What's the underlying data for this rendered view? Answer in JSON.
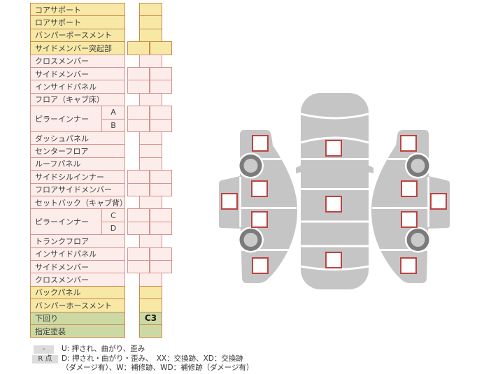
{
  "table": {
    "rows": [
      {
        "label": "コアサポート",
        "color": "yellow",
        "cell": "narrow",
        "value": ""
      },
      {
        "label": "ロアサポート",
        "color": "yellow",
        "cell": "narrow",
        "value": ""
      },
      {
        "label": "バンパーボースメント",
        "color": "yellow",
        "cell": "narrow",
        "value": ""
      },
      {
        "label": "サイドメンバー突起部",
        "color": "yellow",
        "cell": "wide",
        "value": ""
      },
      {
        "label": "クロスメンバー",
        "color": "pink",
        "cell": "narrow",
        "value": ""
      },
      {
        "label": "サイドメンバー",
        "color": "pink",
        "cell": "wide",
        "value": ""
      },
      {
        "label": "インサイドパネル",
        "color": "pink",
        "cell": "wide",
        "value": ""
      },
      {
        "label": "フロア（キャブ床）",
        "color": "pink",
        "cell": "narrow",
        "value": ""
      },
      {
        "label": "ピラーインナー",
        "sub": "A",
        "group": "first",
        "color": "pink",
        "cell": "wide",
        "value": ""
      },
      {
        "label": "",
        "sub": "B",
        "group": "second",
        "color": "pink",
        "cell": "wide",
        "value": ""
      },
      {
        "label": "ダッシュパネル",
        "color": "pink",
        "cell": "narrow",
        "value": ""
      },
      {
        "label": "センターフロア",
        "color": "pink",
        "cell": "narrow",
        "value": ""
      },
      {
        "label": "ルーフパネル",
        "color": "pink",
        "cell": "narrow",
        "value": ""
      },
      {
        "label": "サイドシルインナー",
        "color": "pink",
        "cell": "wide",
        "value": ""
      },
      {
        "label": "フロアサイドメンバー",
        "color": "pink",
        "cell": "wide",
        "value": ""
      },
      {
        "label": "セットバック（キャブ背）",
        "color": "pink",
        "cell": "narrow",
        "value": ""
      },
      {
        "label": "ピラーインナー",
        "sub": "C",
        "group": "first",
        "color": "pink",
        "cell": "wide",
        "value": ""
      },
      {
        "label": "",
        "sub": "D",
        "group": "second",
        "color": "pink",
        "cell": "wide",
        "value": ""
      },
      {
        "label": "トランクフロア",
        "color": "pink",
        "cell": "narrow",
        "value": ""
      },
      {
        "label": "インサイドパネル",
        "color": "pink",
        "cell": "wide",
        "value": ""
      },
      {
        "label": "サイドメンバー",
        "color": "pink",
        "cell": "wide",
        "value": ""
      },
      {
        "label": "クロスメンバー",
        "color": "pink",
        "cell": "narrow",
        "value": ""
      },
      {
        "label": "バックパネル",
        "color": "yellow",
        "cell": "narrow",
        "value": ""
      },
      {
        "label": "バンパーホースメント",
        "color": "yellow",
        "cell": "narrow",
        "value": ""
      },
      {
        "label": "下回り",
        "color": "green",
        "cell": "narrow",
        "value": "C3"
      },
      {
        "label": "指定塗装",
        "color": "green",
        "cell": "narrow",
        "value": ""
      }
    ]
  },
  "legend": {
    "key1": "-",
    "line1": "U: 押され、曲がり、歪み",
    "key2": "R 点",
    "line2": "D: 押され・曲がり・歪み、　XX：交換跡、XD：交換跡",
    "line3": "（ダメージ有）、W：補修跡、WD：補修跡（ダメージ有）"
  },
  "diagram": {
    "top_view": {
      "squares": [
        {
          "name": "hood",
          "value": ""
        },
        {
          "name": "roof",
          "value": ""
        },
        {
          "name": "trunk",
          "value": ""
        }
      ]
    },
    "left_side": {
      "squares": [
        {
          "name": "front-fender",
          "value": ""
        },
        {
          "name": "front-door",
          "value": ""
        },
        {
          "name": "rear-door",
          "value": ""
        },
        {
          "name": "rear-fender",
          "value": ""
        },
        {
          "name": "roof",
          "value": ""
        }
      ]
    },
    "right_side": {
      "squares": [
        {
          "name": "front-fender",
          "value": ""
        },
        {
          "name": "front-door",
          "value": ""
        },
        {
          "name": "rear-door",
          "value": ""
        },
        {
          "name": "rear-fender",
          "value": ""
        },
        {
          "name": "roof",
          "value": ""
        }
      ]
    }
  },
  "colors": {
    "yellow_fill": "#f7e8a6",
    "yellow_border": "#cb8a4d",
    "pink_fill": "#fcecea",
    "pink_border": "#d4948f",
    "green_fill": "#ccd9a5",
    "green_border": "#cb8a4d",
    "car_gray": "#c5c5c5",
    "wheel_ring": "#7b7b7b",
    "wheel_hub": "#cbcbcb",
    "marker_border": "#bc4340",
    "legend_key_bg": "#dcdcdc"
  }
}
